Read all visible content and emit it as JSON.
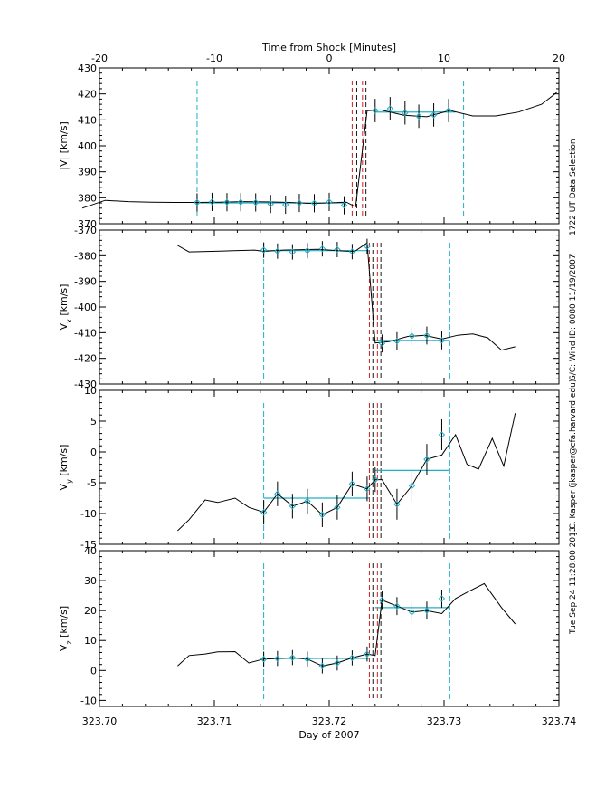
{
  "chart_data": {
    "type": "line",
    "top_axis": {
      "title": "Time from Shock [Minutes]",
      "range": [
        -20,
        20
      ],
      "ticks": [
        -20,
        -10,
        0,
        10,
        20
      ]
    },
    "x_axis": {
      "title": "Day of 2007",
      "range": [
        323.7,
        323.74
      ],
      "ticks": [
        323.7,
        323.71,
        323.72,
        323.73,
        323.74
      ],
      "tick_labels": [
        "323.70",
        "323.71",
        "323.72",
        "323.73",
        "323.74"
      ]
    },
    "side_annotations": [
      "Tue Sep 24 11:28:00 2013",
      "J.C. Kasper (jkasper@cfa.harvard.edu)",
      "S/C: Wind ID: 0080 11/19/2007",
      "1722 UT Data Selection"
    ],
    "colors": {
      "line": "#000000",
      "upstream_marker": "#1fb0c8",
      "shock_marker": "#d02020",
      "mean_line": "#1fb0c8",
      "points": "#1fb0c8"
    },
    "panels": [
      {
        "id": "v-mag",
        "ylabel": "|V| [km/s]",
        "ylim": [
          370,
          430
        ],
        "yticks": [
          370,
          380,
          390,
          400,
          410,
          420,
          430
        ],
        "line_x": [
          323.6985,
          323.7005,
          323.7025,
          323.7045,
          323.7065,
          323.7085,
          323.7105,
          323.7125,
          323.7145,
          323.7165,
          323.7185,
          323.7205,
          323.7215,
          323.7223,
          323.7233,
          323.7245,
          323.7265,
          323.7285,
          323.7305,
          323.7325,
          323.7345,
          323.7365,
          323.7385,
          323.7398
        ],
        "line_y": [
          376,
          379,
          378.5,
          378.3,
          378.2,
          378.2,
          378.3,
          378.5,
          378.4,
          378.2,
          377.8,
          378.1,
          378.3,
          376.5,
          413.5,
          413.8,
          411.8,
          411.2,
          413.6,
          411.5,
          411.5,
          413,
          416,
          420.5
        ],
        "points_x": [
          323.7085,
          323.7098,
          323.7111,
          323.7123,
          323.7136,
          323.7149,
          323.7162,
          323.7174,
          323.7187,
          323.72,
          323.7213,
          323.724,
          323.7253,
          323.7266,
          323.7278,
          323.7291,
          323.7304
        ],
        "points_y": [
          378.2,
          378.4,
          378.3,
          378.3,
          378.2,
          377.6,
          377.3,
          378.0,
          377.9,
          378.4,
          377.1,
          413.6,
          414.3,
          412.7,
          411.4,
          411.9,
          413.6
        ],
        "points_err": [
          3.5,
          3.5,
          3.5,
          3.5,
          3.5,
          3.5,
          3.5,
          3.5,
          3.5,
          3.5,
          3.5,
          4.5,
          4.5,
          4.5,
          4.5,
          4.5,
          4.5
        ],
        "means": [
          {
            "x0": 323.7085,
            "x1": 323.7215,
            "y": 378.0
          },
          {
            "x0": 323.724,
            "x1": 323.731,
            "y": 413.0
          }
        ],
        "markers_cyan": [
          323.7085,
          323.7317
        ],
        "markers_red": [
          323.722,
          323.7224,
          323.7229,
          323.7232
        ]
      },
      {
        "id": "vx",
        "ylabel_main": "V",
        "ylabel_sub": "x",
        "ylabel_rest": " [km/s]",
        "ylim": [
          -430,
          -370
        ],
        "yticks": [
          -430,
          -420,
          -410,
          -400,
          -390,
          -380,
          -370
        ],
        "line_x": [
          323.7068,
          323.7078,
          323.7105,
          323.7135,
          323.7143,
          323.716,
          323.719,
          323.7222,
          323.7233,
          323.724,
          323.7252,
          323.7268,
          323.7283,
          323.7298,
          323.7312,
          323.7325,
          323.7338,
          323.735,
          323.7362
        ],
        "line_y": [
          -376,
          -378.5,
          -378.2,
          -377.8,
          -378.3,
          -377.8,
          -377.5,
          -378.4,
          -375,
          -414,
          -413.5,
          -411.5,
          -411,
          -412.5,
          -411,
          -410.5,
          -412,
          -416.8,
          -415.5
        ],
        "points_x": [
          323.7143,
          323.7155,
          323.7168,
          323.7181,
          323.7194,
          323.7207,
          323.722,
          323.7233,
          323.7246,
          323.7259,
          323.7272,
          323.7285,
          323.7298
        ],
        "points_y": [
          -377.8,
          -378.2,
          -378.5,
          -378.0,
          -377.3,
          -377.6,
          -378.4,
          -376.4,
          -414.2,
          -413.3,
          -411.3,
          -411.1,
          -413.0
        ],
        "points_err": [
          3,
          3,
          3,
          3,
          3,
          3,
          3,
          3,
          3.5,
          3.5,
          3.5,
          3.5,
          3.5
        ],
        "means": [
          {
            "x0": 323.7143,
            "x1": 323.7235,
            "y": -378.0
          },
          {
            "x0": 323.724,
            "x1": 323.7305,
            "y": -413.0
          }
        ],
        "markers_cyan": [
          323.7143,
          323.7305
        ],
        "markers_red": [
          323.7235,
          323.7238,
          323.7242,
          323.7245
        ]
      },
      {
        "id": "vy",
        "ylabel_main": "V",
        "ylabel_sub": "y",
        "ylabel_rest": " [km/s]",
        "ylim": [
          -15,
          10
        ],
        "yticks": [
          -15,
          -10,
          -5,
          0,
          5,
          10
        ],
        "line_x": [
          323.7068,
          323.7078,
          323.7092,
          323.7103,
          323.7118,
          323.713,
          323.7143,
          323.7155,
          323.7168,
          323.7181,
          323.7194,
          323.7207,
          323.722,
          323.7233,
          323.724,
          323.7246,
          323.7259,
          323.7272,
          323.7285,
          323.7298,
          323.731,
          323.732,
          323.733,
          323.7342,
          323.7352,
          323.7362
        ],
        "line_y": [
          -12.8,
          -11,
          -7.8,
          -8.2,
          -7.5,
          -9,
          -9.8,
          -6.8,
          -8.8,
          -8,
          -10.2,
          -9,
          -5.2,
          -6,
          -4.5,
          -4.5,
          -8.5,
          -5.5,
          -1.2,
          -0.5,
          2.8,
          -2,
          -2.8,
          2.2,
          -2.3,
          6.3
        ],
        "points_x": [
          323.7143,
          323.7155,
          323.7168,
          323.7181,
          323.7194,
          323.7207,
          323.722,
          323.7233,
          323.724,
          323.7259,
          323.7272,
          323.7285,
          323.7298
        ],
        "points_y": [
          -9.8,
          -6.8,
          -8.8,
          -8.0,
          -10.2,
          -9.0,
          -5.2,
          -6.0,
          -4.5,
          -8.5,
          -5.5,
          -1.2,
          2.8
        ],
        "points_err": [
          2,
          2,
          2,
          2,
          2,
          2,
          2,
          2,
          2,
          2.5,
          2.5,
          2.5,
          2.5
        ],
        "means": [
          {
            "x0": 323.7143,
            "x1": 323.7235,
            "y": -7.5
          },
          {
            "x0": 323.724,
            "x1": 323.7305,
            "y": -3.0
          }
        ],
        "markers_cyan": [
          323.7143,
          323.7305
        ],
        "markers_red": [
          323.7235,
          323.7238,
          323.7242,
          323.7245
        ]
      },
      {
        "id": "vz",
        "ylabel_main": "V",
        "ylabel_sub": "z",
        "ylabel_rest": " [km/s]",
        "ylim": [
          -12,
          40
        ],
        "yticks": [
          -10,
          0,
          10,
          20,
          30,
          40
        ],
        "line_x": [
          323.7068,
          323.7078,
          323.7092,
          323.7103,
          323.7118,
          323.713,
          323.7143,
          323.7155,
          323.7168,
          323.7181,
          323.7194,
          323.7207,
          323.722,
          323.7233,
          323.724,
          323.7246,
          323.7259,
          323.7272,
          323.7285,
          323.7298,
          323.731,
          323.7322,
          323.7335,
          323.735,
          323.7362
        ],
        "line_y": [
          1.5,
          5,
          5.5,
          6.2,
          6.3,
          2.5,
          3.8,
          4,
          4.3,
          3.8,
          1.5,
          2.5,
          4.2,
          5.5,
          5,
          23.5,
          21.5,
          19.5,
          20,
          19,
          24,
          26.5,
          29,
          21,
          15.5
        ],
        "points_x": [
          323.7143,
          323.7155,
          323.7168,
          323.7181,
          323.7194,
          323.7207,
          323.722,
          323.7233,
          323.7246,
          323.7259,
          323.7272,
          323.7285,
          323.7298
        ],
        "points_y": [
          3.8,
          4.0,
          4.3,
          3.8,
          1.5,
          2.5,
          4.2,
          5.5,
          23.5,
          21.5,
          19.5,
          20.0,
          24.0
        ],
        "points_err": [
          2.5,
          2.5,
          2.5,
          2.5,
          2.5,
          2.5,
          2.5,
          2.5,
          3,
          3,
          3,
          3,
          3
        ],
        "means": [
          {
            "x0": 323.7143,
            "x1": 323.7235,
            "y": 4.0
          },
          {
            "x0": 323.724,
            "x1": 323.7305,
            "y": 21.0
          }
        ],
        "markers_cyan": [
          323.7143,
          323.7305
        ],
        "markers_red": [
          323.7235,
          323.7238,
          323.7242,
          323.7245
        ]
      }
    ]
  }
}
